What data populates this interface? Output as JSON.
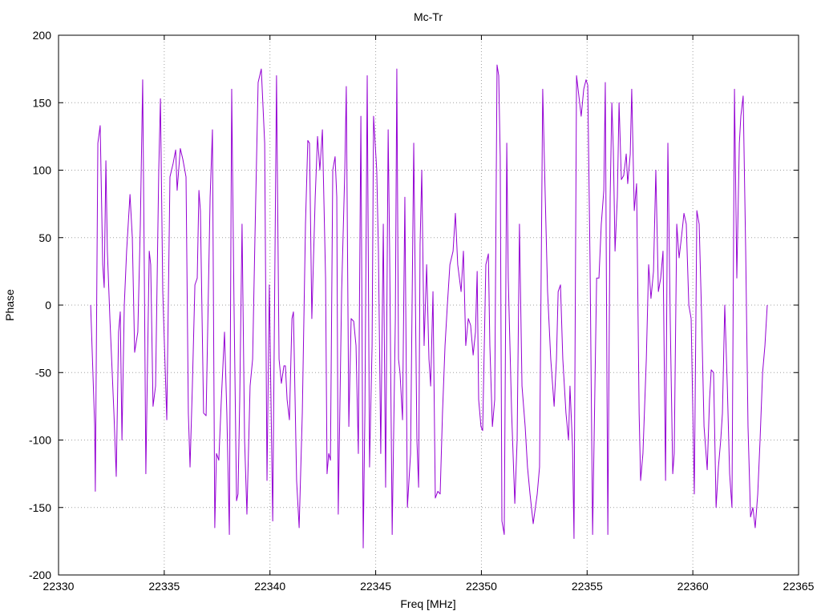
{
  "chart_data": {
    "type": "line",
    "title": "Mc-Tr",
    "x_label": "Freq [MHz]",
    "y_label": "Phase",
    "color": "#9400d3",
    "grid": true,
    "xlim": [
      22330,
      22365
    ],
    "xticks": [
      22330,
      22335,
      22340,
      22345,
      22350,
      22355,
      22360,
      22365
    ],
    "ylim": [
      -200,
      200
    ],
    "yticks": [
      -200,
      -150,
      -100,
      -50,
      0,
      50,
      100,
      150,
      200
    ],
    "x": [
      22331.52,
      22331.71,
      22331.74,
      22331.86,
      22331.97,
      22332.09,
      22332.16,
      22332.24,
      22332.31,
      22332.43,
      22332.62,
      22332.73,
      22332.84,
      22332.92,
      22333.0,
      22333.11,
      22333.22,
      22333.38,
      22333.49,
      22333.6,
      22333.75,
      22333.87,
      22333.98,
      22334.06,
      22334.13,
      22334.29,
      22334.36,
      22334.47,
      22334.59,
      22334.74,
      22334.82,
      22334.93,
      22335.12,
      22335.27,
      22335.42,
      22335.54,
      22335.61,
      22335.76,
      22335.88,
      22336.03,
      22336.14,
      22336.22,
      22336.33,
      22336.45,
      22336.56,
      22336.64,
      22336.71,
      22336.86,
      22336.98,
      22337.17,
      22337.28,
      22337.39,
      22337.47,
      22337.58,
      22337.7,
      22337.85,
      22337.96,
      22338.08,
      22338.19,
      22338.3,
      22338.42,
      22338.49,
      22338.57,
      22338.68,
      22338.8,
      22338.91,
      22339.06,
      22339.18,
      22339.29,
      22339.44,
      22339.59,
      22339.75,
      22339.86,
      22339.97,
      22340.13,
      22340.31,
      22340.43,
      22340.54,
      22340.66,
      22340.73,
      22340.81,
      22340.92,
      22341.04,
      22341.11,
      22341.26,
      22341.38,
      22341.53,
      22341.68,
      22341.79,
      22341.87,
      22341.98,
      22342.14,
      22342.25,
      22342.36,
      22342.48,
      22342.63,
      22342.7,
      22342.78,
      22342.86,
      22342.97,
      22343.08,
      22343.16,
      22343.23,
      22343.39,
      22343.54,
      22343.61,
      22343.73,
      22343.84,
      22343.96,
      22344.07,
      22344.18,
      22344.3,
      22344.41,
      22344.49,
      22344.6,
      22344.71,
      22344.83,
      22344.9,
      22345.05,
      22345.13,
      22345.24,
      22345.36,
      22345.47,
      22345.59,
      22345.66,
      22345.78,
      22345.93,
      22346.0,
      22346.08,
      22346.15,
      22346.27,
      22346.38,
      22346.5,
      22346.65,
      22346.8,
      22346.95,
      22347.03,
      22347.1,
      22347.18,
      22347.29,
      22347.41,
      22347.52,
      22347.6,
      22347.71,
      22347.82,
      22347.94,
      22348.05,
      22348.16,
      22348.28,
      22348.39,
      22348.51,
      22348.66,
      22348.77,
      22348.88,
      22349.04,
      22349.15,
      22349.26,
      22349.38,
      22349.49,
      22349.61,
      22349.72,
      22349.8,
      22349.87,
      22349.98,
      22350.06,
      22350.21,
      22350.33,
      22350.4,
      22350.52,
      22350.63,
      22350.74,
      22350.82,
      22350.89,
      22350.97,
      22351.08,
      22351.2,
      22351.27,
      22351.43,
      22351.58,
      22351.69,
      22351.8,
      22351.92,
      22352.07,
      22352.18,
      22352.3,
      22352.45,
      22352.64,
      22352.75,
      22352.9,
      22353.02,
      22353.13,
      22353.28,
      22353.44,
      22353.55,
      22353.63,
      22353.74,
      22353.85,
      22354.0,
      22354.12,
      22354.19,
      22354.31,
      22354.38,
      22354.5,
      22354.61,
      22354.72,
      22354.84,
      22354.95,
      22355.03,
      22355.14,
      22355.26,
      22355.33,
      22355.45,
      22355.56,
      22355.67,
      22355.79,
      22355.86,
      22355.98,
      22356.09,
      22356.17,
      22356.24,
      22356.32,
      22356.43,
      22356.51,
      22356.62,
      22356.73,
      22356.85,
      22356.92,
      22357.04,
      22357.11,
      22357.23,
      22357.34,
      22357.46,
      22357.53,
      22357.64,
      22357.8,
      22357.91,
      22358.02,
      22358.14,
      22358.25,
      22358.37,
      22358.48,
      22358.59,
      22358.71,
      22358.82,
      22358.93,
      22359.05,
      22359.12,
      22359.24,
      22359.35,
      22359.46,
      22359.58,
      22359.69,
      22359.81,
      22359.92,
      22360.07,
      22360.19,
      22360.3,
      22360.41,
      22360.53,
      22360.68,
      22360.79,
      22360.87,
      22360.98,
      22361.1,
      22361.21,
      22361.32,
      22361.4,
      22361.51,
      22361.63,
      22361.74,
      22361.85,
      22361.97,
      22362.08,
      22362.2,
      22362.27,
      22362.38,
      22362.5,
      22362.61,
      22362.73,
      22362.84,
      22362.95,
      22363.07,
      22363.18,
      22363.3,
      22363.41,
      22363.52
    ],
    "values": [
      0,
      -90,
      -138,
      120,
      133,
      30,
      13,
      107,
      40,
      -10,
      -80,
      -127,
      -20,
      -5,
      -100,
      0,
      40,
      82,
      50,
      -35,
      -20,
      60,
      167,
      20,
      -125,
      40,
      30,
      -75,
      -60,
      100,
      153,
      10,
      -85,
      95,
      105,
      115,
      85,
      116,
      108,
      95,
      -80,
      -120,
      -60,
      15,
      20,
      85,
      70,
      -80,
      -82,
      80,
      130,
      -165,
      -110,
      -115,
      -70,
      -20,
      -80,
      -170,
      160,
      0,
      -145,
      -140,
      -70,
      60,
      -100,
      -155,
      -60,
      -40,
      50,
      165,
      175,
      120,
      -130,
      15,
      -160,
      170,
      -40,
      -58,
      -45,
      -45,
      -70,
      -85,
      -10,
      -5,
      -130,
      -165,
      -80,
      60,
      122,
      120,
      -10,
      80,
      125,
      100,
      130,
      20,
      -125,
      -110,
      -115,
      100,
      110,
      80,
      -155,
      10,
      100,
      162,
      -90,
      -10,
      -12,
      -30,
      -110,
      140,
      -180,
      -80,
      170,
      -120,
      -30,
      140,
      100,
      40,
      -110,
      60,
      -135,
      130,
      40,
      -170,
      -10,
      175,
      -40,
      -50,
      -85,
      80,
      -150,
      -110,
      120,
      -100,
      -135,
      45,
      100,
      -30,
      30,
      -40,
      -60,
      10,
      -143,
      -138,
      -140,
      -80,
      -30,
      0,
      30,
      40,
      68,
      30,
      10,
      40,
      -30,
      -10,
      -15,
      -37,
      -20,
      25,
      -70,
      -90,
      -93,
      30,
      38,
      -30,
      -90,
      -70,
      178,
      170,
      110,
      -160,
      -170,
      120,
      20,
      -80,
      -147,
      -100,
      60,
      -60,
      -90,
      -120,
      -140,
      -162,
      -140,
      -120,
      160,
      80,
      10,
      -40,
      -75,
      -40,
      10,
      15,
      -40,
      -80,
      -100,
      -60,
      -105,
      -173,
      170,
      155,
      140,
      160,
      167,
      163,
      30,
      -170,
      -100,
      20,
      20,
      60,
      85,
      165,
      -170,
      80,
      150,
      115,
      40,
      80,
      150,
      93,
      96,
      112,
      90,
      112,
      160,
      70,
      90,
      -80,
      -130,
      -110,
      -40,
      30,
      5,
      25,
      100,
      10,
      20,
      40,
      -130,
      120,
      -10,
      -125,
      -110,
      60,
      35,
      50,
      68,
      60,
      0,
      -10,
      -140,
      70,
      60,
      -5,
      -90,
      -122,
      -70,
      -48,
      -50,
      -150,
      -120,
      -100,
      -80,
      0,
      -60,
      -125,
      -150,
      160,
      20,
      120,
      140,
      155,
      40,
      -90,
      -157,
      -150,
      -165,
      -140,
      -100,
      -50,
      -30,
      0
    ]
  }
}
